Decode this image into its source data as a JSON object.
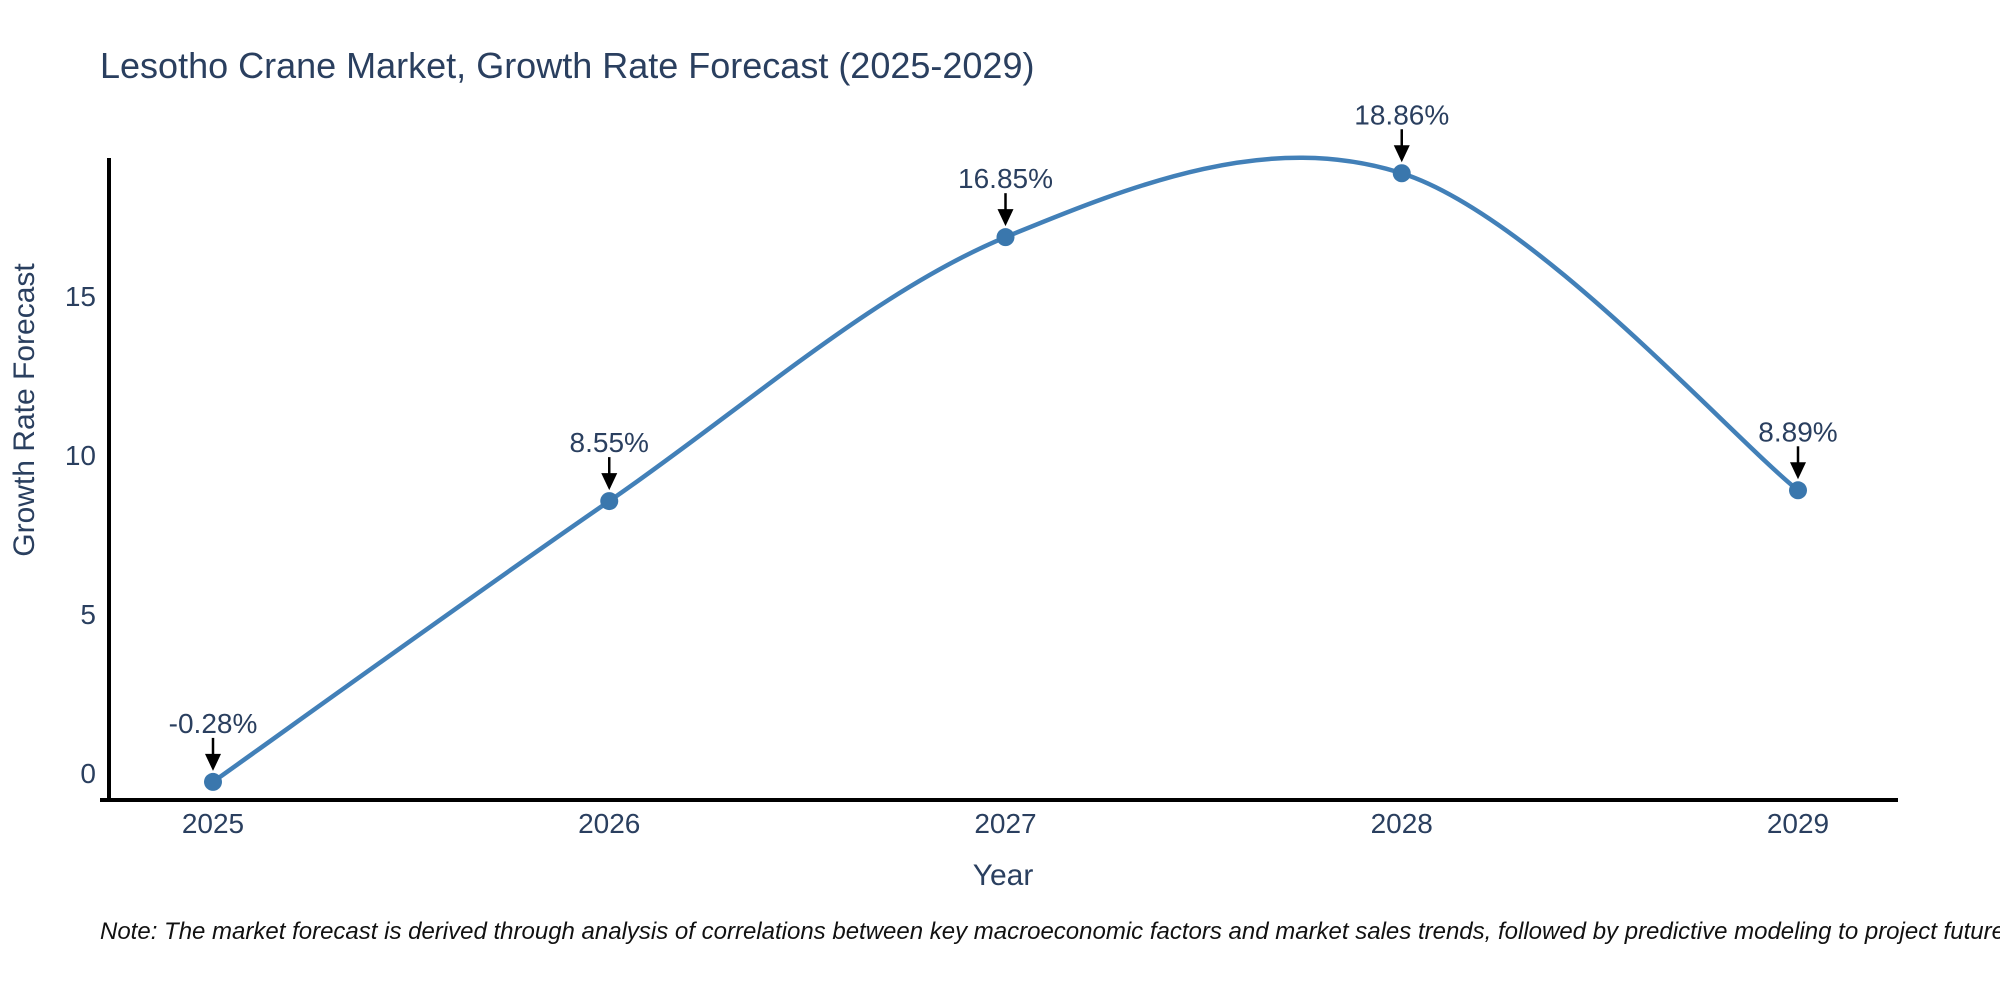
{
  "title": "Lesotho Crane Market, Growth Rate Forecast (2025-2029)",
  "note": "Note: The market forecast is derived through analysis of correlations between key macroeconomic factors and market sales trends, followed by predictive modeling to project future sales",
  "chart_data": {
    "type": "line",
    "title": "Lesotho Crane Market, Growth Rate Forecast (2025-2029)",
    "xlabel": "Year",
    "ylabel": "Growth Rate Forecast",
    "x": [
      2025,
      2026,
      2027,
      2028,
      2029
    ],
    "values": [
      -0.28,
      8.55,
      16.85,
      18.86,
      8.89
    ],
    "point_labels": [
      "-0.28%",
      "8.55%",
      "16.85%",
      "18.86%",
      "8.89%"
    ],
    "y_ticks": [
      0,
      5,
      10,
      15
    ],
    "ylim": [
      -0.9,
      19.4
    ],
    "line_shape": "spline",
    "grid": false,
    "legend": "none",
    "colors": {
      "line": "#4280b8",
      "marker": "#3a77ad",
      "axis": "#000000",
      "text": "#2a3f5f",
      "arrow": "#000000"
    }
  }
}
